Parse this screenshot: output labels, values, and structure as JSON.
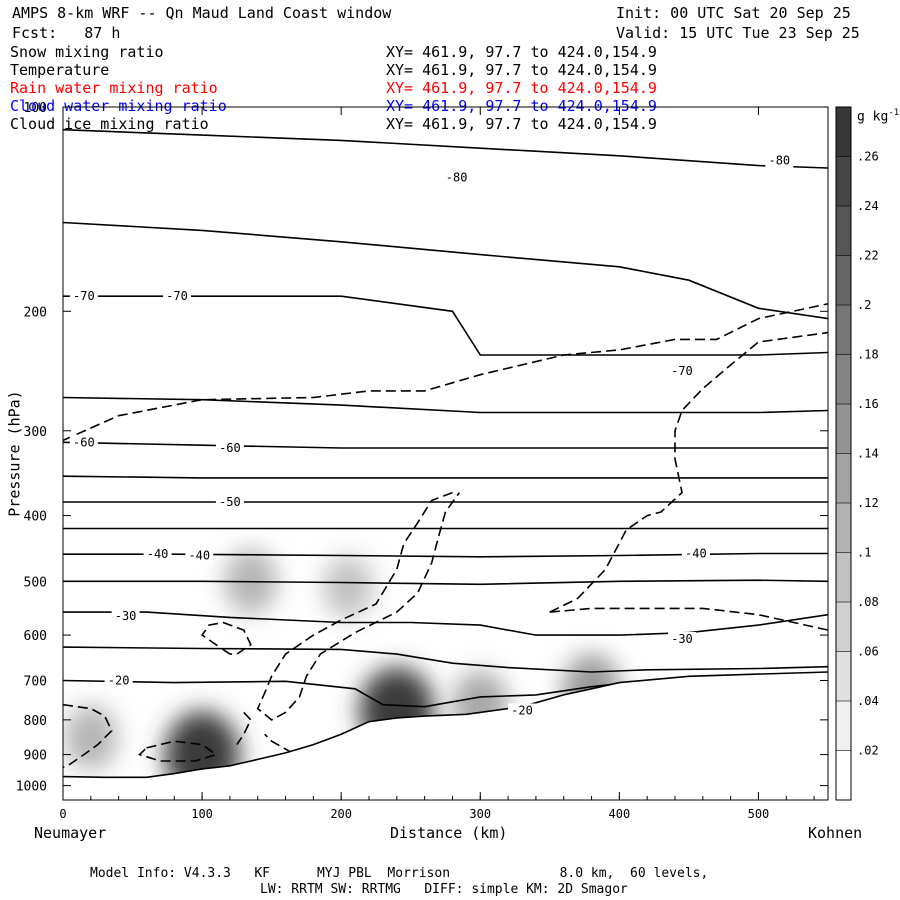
{
  "header": {
    "title": "AMPS 8-km WRF -- Qn Maud Land Coast window",
    "init": "Init: 00 UTC Sat 20 Sep 25",
    "fcst": "Fcst:   87 h",
    "valid": "Valid: 15 UTC Tue 23 Sep 25"
  },
  "fields": [
    {
      "name": "Snow mixing ratio",
      "xy": "XY= 461.9, 97.7 to 424.0,154.9",
      "color": "#000000"
    },
    {
      "name": "Temperature",
      "xy": "XY= 461.9, 97.7 to 424.0,154.9",
      "color": "#000000"
    },
    {
      "name": "Rain water mixing ratio",
      "xy": "XY= 461.9, 97.7 to 424.0,154.9",
      "color": "#ff0000"
    },
    {
      "name": "Cloud water mixing ratio",
      "xy": "XY= 461.9, 97.7 to 424.0,154.9",
      "color": "#0000ff"
    },
    {
      "name": "Cloud ice mixing ratio",
      "xy": "XY= 461.9, 97.7 to 424.0,154.9",
      "color": "#000000"
    }
  ],
  "axes": {
    "ylabel": "Pressure (hPa)",
    "xlabel": "Distance (km)",
    "x_left_label": "Neumayer",
    "x_right_label": "Kohnen",
    "colorbar_unit": "g kg",
    "colorbar_unit_exp": "-1"
  },
  "footer": {
    "line1": "Model Info: V4.3.3   KF      MYJ PBL  Morrison              8.0 km,  60 levels,",
    "line2": "LW: RRTM SW: RRTMG   DIFF: simple KM: 2D Smagor"
  },
  "chart_data": {
    "type": "contour",
    "x_range": [
      0,
      550
    ],
    "y_range": [
      1050,
      100
    ],
    "y_scale": "log",
    "xticks": [
      0,
      100,
      200,
      300,
      400,
      500
    ],
    "yticks": [
      100,
      200,
      300,
      400,
      500,
      600,
      700,
      800,
      900,
      1000
    ],
    "colorbar_ticks": [
      ".02",
      ".04",
      ".06",
      ".08",
      ".1",
      ".12",
      ".14",
      ".16",
      ".18",
      ".2",
      ".22",
      ".24",
      ".26"
    ],
    "colorbar_range": [
      0,
      0.28
    ],
    "terrain": [
      [
        0,
        970
      ],
      [
        30,
        972
      ],
      [
        60,
        972
      ],
      [
        80,
        960
      ],
      [
        100,
        945
      ],
      [
        120,
        935
      ],
      [
        140,
        915
      ],
      [
        160,
        895
      ],
      [
        180,
        870
      ],
      [
        200,
        840
      ],
      [
        220,
        805
      ],
      [
        240,
        795
      ],
      [
        260,
        790
      ],
      [
        290,
        785
      ],
      [
        330,
        765
      ],
      [
        360,
        735
      ],
      [
        380,
        720
      ],
      [
        400,
        705
      ],
      [
        450,
        690
      ],
      [
        500,
        685
      ],
      [
        550,
        680
      ]
    ],
    "temperature_contours": [
      {
        "label": "-80",
        "points": [
          [
            0,
            108
          ],
          [
            100,
            110
          ],
          [
            200,
            112
          ],
          [
            300,
            115
          ],
          [
            400,
            118
          ],
          [
            500,
            122
          ],
          [
            550,
            123
          ]
        ],
        "labels": [
          [
            283,
            127
          ],
          [
            515,
            120
          ]
        ]
      },
      {
        "label": "",
        "points": [
          [
            0,
            148
          ],
          [
            100,
            152
          ],
          [
            200,
            158
          ],
          [
            300,
            165
          ],
          [
            400,
            172
          ],
          [
            450,
            180
          ],
          [
            500,
            198
          ],
          [
            550,
            205
          ]
        ],
        "labels": []
      },
      {
        "label": "-70",
        "points": [
          [
            0,
            190
          ],
          [
            100,
            190
          ],
          [
            200,
            190
          ],
          [
            280,
            200
          ],
          [
            300,
            232
          ],
          [
            400,
            232
          ],
          [
            500,
            232
          ],
          [
            550,
            230
          ]
        ],
        "labels": [
          [
            15,
            190
          ],
          [
            82,
            190
          ],
          [
            445,
            245
          ]
        ]
      },
      {
        "label": "",
        "points": [
          [
            0,
            268
          ],
          [
            100,
            270
          ],
          [
            200,
            275
          ],
          [
            300,
            282
          ],
          [
            400,
            282
          ],
          [
            500,
            282
          ],
          [
            550,
            280
          ]
        ],
        "labels": []
      },
      {
        "label": "-60",
        "points": [
          [
            0,
            312
          ],
          [
            100,
            315
          ],
          [
            200,
            318
          ],
          [
            300,
            318
          ],
          [
            400,
            318
          ],
          [
            500,
            318
          ],
          [
            550,
            318
          ]
        ],
        "labels": [
          [
            15,
            312
          ],
          [
            120,
            318
          ]
        ]
      },
      {
        "label": "",
        "points": [
          [
            0,
            350
          ],
          [
            100,
            352
          ],
          [
            200,
            352
          ],
          [
            300,
            352
          ],
          [
            400,
            352
          ],
          [
            500,
            352
          ],
          [
            550,
            352
          ]
        ],
        "labels": []
      },
      {
        "label": "-50",
        "points": [
          [
            0,
            382
          ],
          [
            100,
            382
          ],
          [
            200,
            382
          ],
          [
            300,
            382
          ],
          [
            400,
            382
          ],
          [
            500,
            382
          ],
          [
            550,
            382
          ]
        ],
        "labels": [
          [
            120,
            382
          ]
        ]
      },
      {
        "label": "",
        "points": [
          [
            0,
            418
          ],
          [
            100,
            418
          ],
          [
            200,
            418
          ],
          [
            300,
            418
          ],
          [
            400,
            418
          ],
          [
            500,
            418
          ],
          [
            550,
            418
          ]
        ],
        "labels": []
      },
      {
        "label": "-40",
        "points": [
          [
            0,
            456
          ],
          [
            80,
            456
          ],
          [
            200,
            458
          ],
          [
            300,
            460
          ],
          [
            400,
            458
          ],
          [
            500,
            455
          ],
          [
            550,
            455
          ]
        ],
        "labels": [
          [
            68,
            456
          ],
          [
            98,
            458
          ],
          [
            455,
            455
          ]
        ]
      },
      {
        "label": "",
        "points": [
          [
            0,
            500
          ],
          [
            100,
            500
          ],
          [
            200,
            502
          ],
          [
            300,
            505
          ],
          [
            400,
            500
          ],
          [
            500,
            498
          ],
          [
            550,
            500
          ]
        ],
        "labels": []
      },
      {
        "label": "-30",
        "points": [
          [
            0,
            555
          ],
          [
            60,
            555
          ],
          [
            120,
            565
          ],
          [
            200,
            575
          ],
          [
            250,
            575
          ],
          [
            300,
            580
          ],
          [
            340,
            600
          ],
          [
            400,
            600
          ],
          [
            450,
            595
          ],
          [
            500,
            580
          ],
          [
            550,
            560
          ]
        ],
        "labels": [
          [
            45,
            562
          ],
          [
            445,
            608
          ]
        ]
      },
      {
        "label": "",
        "points": [
          [
            0,
            625
          ],
          [
            100,
            628
          ],
          [
            200,
            630
          ],
          [
            240,
            640
          ],
          [
            280,
            660
          ],
          [
            320,
            670
          ],
          [
            380,
            680
          ],
          [
            420,
            675
          ],
          [
            500,
            672
          ],
          [
            550,
            668
          ]
        ],
        "labels": []
      },
      {
        "label": "-20",
        "points": [
          [
            0,
            700
          ],
          [
            80,
            705
          ],
          [
            160,
            702
          ],
          [
            210,
            720
          ],
          [
            230,
            760
          ],
          [
            260,
            765
          ],
          [
            300,
            740
          ],
          [
            340,
            735
          ],
          [
            380,
            715
          ],
          [
            420,
            700
          ],
          [
            480,
            698
          ],
          [
            550,
            690
          ]
        ],
        "labels": [
          [
            40,
            700
          ],
          [
            330,
            775
          ]
        ]
      }
    ],
    "snow_max": [
      {
        "x": 135,
        "y": 500,
        "value": 0.08
      },
      {
        "x": 205,
        "y": 510,
        "value": 0.06
      },
      {
        "x": 240,
        "y": 775,
        "value": 0.26
      },
      {
        "x": 380,
        "y": 720,
        "value": 0.12
      },
      {
        "x": 300,
        "y": 760,
        "value": 0.1
      },
      {
        "x": 100,
        "y": 900,
        "value": 0.26
      },
      {
        "x": 20,
        "y": 850,
        "value": 0.08
      }
    ]
  }
}
